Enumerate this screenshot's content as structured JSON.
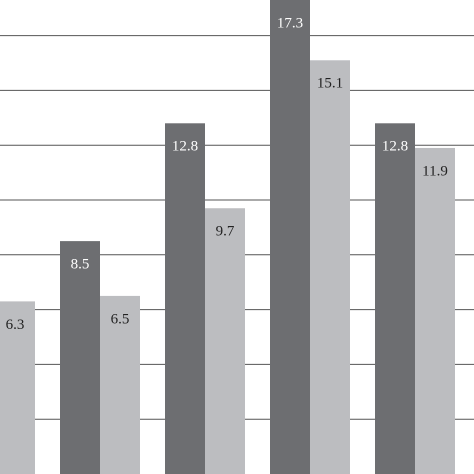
{
  "chart_data": {
    "type": "bar",
    "categories": [
      null,
      null,
      null,
      null,
      null
    ],
    "series": [
      {
        "color": "#6d6e71",
        "values": [
          null,
          8.5,
          12.8,
          17.3,
          12.8
        ]
      },
      {
        "color": "#bcbdc0",
        "values": [
          6.3,
          6.5,
          9.7,
          15.1,
          11.9
        ]
      }
    ],
    "ylim": [
      0,
      17.3
    ],
    "yticks": [
      2,
      4,
      6,
      8,
      10,
      12,
      14,
      16
    ],
    "grid": true
  }
}
